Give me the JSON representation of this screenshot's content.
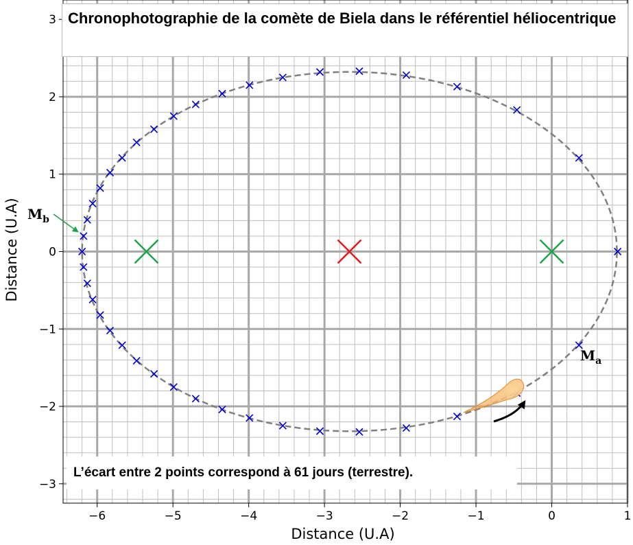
{
  "title": "Chronophotographie de la comète de Biela dans le référentiel héliocentrique",
  "note": "L’écart entre 2 points correspond à 61 jours (terrestre).",
  "labels": {
    "mb_main": "M",
    "mb_sub": "b",
    "ma_main": "M",
    "ma_sub": "a"
  },
  "colors": {
    "orbit": "#808080",
    "points": "#0000cc",
    "sun": "#1fa24a",
    "center": "#e41a1c",
    "arrow_green": "#1fa24a",
    "arrow_black": "#000000",
    "comet": "#f2a24b"
  },
  "chart_data": {
    "type": "scatter",
    "xlabel": "Distance (U.A)",
    "ylabel": "Distance (U.A)",
    "xlim": [
      -6.45,
      1.0
    ],
    "ylim": [
      -3.25,
      3.25
    ],
    "xticks": [
      -6,
      -5,
      -4,
      -3,
      -2,
      -1,
      0,
      1
    ],
    "yticks": [
      -3,
      -2,
      -1,
      0,
      1,
      2,
      3
    ],
    "grid": true,
    "orbit": {
      "center": [
        -2.67,
        0
      ],
      "semi_major": 3.53,
      "semi_minor": 2.32,
      "style": "dashed"
    },
    "series": [
      {
        "marker": "x",
        "x": [
          0.87,
          0.36,
          -0.46,
          -1.25,
          -1.92,
          -2.54,
          -3.06,
          -3.55,
          -3.99,
          -4.35,
          -4.7,
          -4.99,
          -5.25,
          -5.48,
          -5.67,
          -5.83,
          -5.96,
          -6.06,
          -6.13,
          -6.18,
          -6.2,
          -6.18,
          -6.13,
          -6.06,
          -5.96,
          -5.83,
          -5.67,
          -5.48,
          -5.25,
          -4.99,
          -4.7,
          -4.35,
          -3.99,
          -3.55,
          -3.06,
          -2.54,
          -1.92,
          -1.25,
          -0.46,
          0.36
        ],
        "y": [
          0,
          -1.21,
          -1.83,
          -2.13,
          -2.28,
          -2.33,
          -2.32,
          -2.25,
          -2.15,
          -2.04,
          -1.9,
          -1.75,
          -1.58,
          -1.41,
          -1.21,
          -1.02,
          -0.82,
          -0.62,
          -0.41,
          -0.2,
          0,
          0.2,
          0.41,
          0.62,
          0.82,
          1.02,
          1.21,
          1.41,
          1.58,
          1.75,
          1.9,
          2.04,
          2.15,
          2.25,
          2.32,
          2.33,
          2.28,
          2.13,
          1.83,
          1.21
        ]
      }
    ],
    "special_points": [
      {
        "role": "foyer-soleil",
        "x": 0,
        "y": 0,
        "marker": "X",
        "color": "#1fa24a"
      },
      {
        "role": "foyer-vide",
        "x": -5.35,
        "y": 0,
        "marker": "X",
        "color": "#1fa24a"
      },
      {
        "role": "centre",
        "x": -2.67,
        "y": 0,
        "marker": "X",
        "color": "#e41a1c"
      }
    ]
  }
}
